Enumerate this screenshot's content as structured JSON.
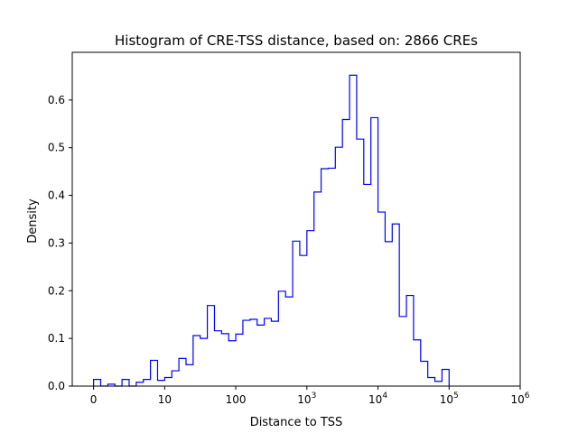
{
  "chart_data": {
    "type": "histogram-step",
    "title": "Histogram of CRE-TSS distance, based on: 2866 CREs",
    "xlabel": "Distance to TSS",
    "ylabel": "Density",
    "xscale": "symlog-like (linear near 0, log10 above 10)",
    "x_ticks": [
      {
        "pos": 0,
        "base": "0",
        "exp": ""
      },
      {
        "pos": 1,
        "base": "10",
        "exp": ""
      },
      {
        "pos": 2,
        "base": "100",
        "exp": ""
      },
      {
        "pos": 3,
        "base": "10",
        "exp": "3"
      },
      {
        "pos": 4,
        "base": "10",
        "exp": "4"
      },
      {
        "pos": 5,
        "base": "10",
        "exp": "5"
      },
      {
        "pos": 6,
        "base": "10",
        "exp": "6"
      }
    ],
    "y_ticks": [
      "0.0",
      "0.1",
      "0.2",
      "0.3",
      "0.4",
      "0.5",
      "0.6"
    ],
    "ylim": [
      0,
      0.7
    ],
    "xlim": [
      -0.3,
      6.0
    ],
    "grid": false,
    "legend": "none",
    "bin_width_decades": 0.1,
    "series": [
      {
        "color": "#0000ff",
        "bins_start": 0.0,
        "values": [
          0.014,
          0.0,
          0.004,
          0.0,
          0.014,
          0.0,
          0.008,
          0.014,
          0.054,
          0.012,
          0.018,
          0.032,
          0.058,
          0.045,
          0.106,
          0.1,
          0.169,
          0.116,
          0.11,
          0.095,
          0.109,
          0.138,
          0.14,
          0.128,
          0.142,
          0.136,
          0.199,
          0.187,
          0.304,
          0.274,
          0.326,
          0.407,
          0.456,
          0.457,
          0.501,
          0.559,
          0.652,
          0.518,
          0.423,
          0.563,
          0.365,
          0.303,
          0.34,
          0.146,
          0.19,
          0.097,
          0.052,
          0.018,
          0.01,
          0.035
        ]
      }
    ]
  }
}
